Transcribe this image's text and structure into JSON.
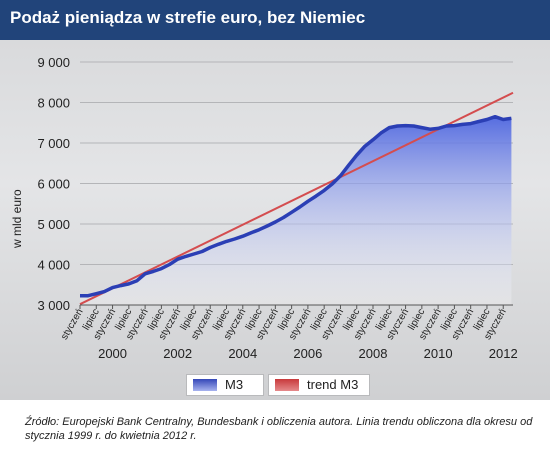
{
  "title": "Podaż pieniądza w strefie euro, bez Niemiec",
  "source": "Źródło: Europejski Bank Centralny, Bundesbank i obliczenia autora. Linia trendu obliczona dla okresu od stycznia 1999 r. do kwietnia 2012 r.",
  "legend": [
    {
      "label": "M3",
      "color": "#2b3fb5"
    },
    {
      "label": "trend M3",
      "color": "#d44d4f"
    }
  ],
  "chart_data": {
    "type": "area",
    "ylabel": "w mld euro",
    "ylim": [
      3000,
      9000
    ],
    "yticks": [
      3000,
      4000,
      5000,
      6000,
      7000,
      8000,
      9000
    ],
    "ytick_labels": [
      "3 000",
      "4 000",
      "5 000",
      "6 000",
      "7 000",
      "8 000",
      "9 000"
    ],
    "xlim": [
      1999.0,
      2012.3
    ],
    "minor_ticks": [
      {
        "label": "styczeń",
        "x": 1999.0
      },
      {
        "label": "lipiec",
        "x": 1999.5
      },
      {
        "label": "styczeń",
        "x": 2000.0
      },
      {
        "label": "lipiec",
        "x": 2000.5
      },
      {
        "label": "styczeń",
        "x": 2001.0
      },
      {
        "label": "lipiec",
        "x": 2001.5
      },
      {
        "label": "styczeń",
        "x": 2002.0
      },
      {
        "label": "lipiec",
        "x": 2002.5
      },
      {
        "label": "styczeń",
        "x": 2003.0
      },
      {
        "label": "lipiec",
        "x": 2003.5
      },
      {
        "label": "styczeń",
        "x": 2004.0
      },
      {
        "label": "lipiec",
        "x": 2004.5
      },
      {
        "label": "styczeń",
        "x": 2005.0
      },
      {
        "label": "lipiec",
        "x": 2005.5
      },
      {
        "label": "styczeń",
        "x": 2006.0
      },
      {
        "label": "lipiec",
        "x": 2006.5
      },
      {
        "label": "styczeń",
        "x": 2007.0
      },
      {
        "label": "lipiec",
        "x": 2007.5
      },
      {
        "label": "styczeń",
        "x": 2008.0
      },
      {
        "label": "lipiec",
        "x": 2008.5
      },
      {
        "label": "styczeń",
        "x": 2009.0
      },
      {
        "label": "lipiec",
        "x": 2009.5
      },
      {
        "label": "styczeń",
        "x": 2010.0
      },
      {
        "label": "lipiec",
        "x": 2010.5
      },
      {
        "label": "styczeń",
        "x": 2011.0
      },
      {
        "label": "lipiec",
        "x": 2011.5
      },
      {
        "label": "styczeń",
        "x": 2012.0
      }
    ],
    "year_labels": [
      {
        "label": "2000",
        "x": 2000.0
      },
      {
        "label": "2002",
        "x": 2002.0
      },
      {
        "label": "2004",
        "x": 2004.0
      },
      {
        "label": "2006",
        "x": 2006.0
      },
      {
        "label": "2008",
        "x": 2008.0
      },
      {
        "label": "2010",
        "x": 2010.0
      },
      {
        "label": "2012",
        "x": 2012.0
      }
    ],
    "series": [
      {
        "name": "M3",
        "style": "area",
        "x": [
          1999.0,
          1999.25,
          1999.5,
          1999.75,
          2000.0,
          2000.25,
          2000.5,
          2000.75,
          2001.0,
          2001.25,
          2001.5,
          2001.75,
          2002.0,
          2002.25,
          2002.5,
          2002.75,
          2003.0,
          2003.25,
          2003.5,
          2003.75,
          2004.0,
          2004.25,
          2004.5,
          2004.75,
          2005.0,
          2005.25,
          2005.5,
          2005.75,
          2006.0,
          2006.25,
          2006.5,
          2006.75,
          2007.0,
          2007.25,
          2007.5,
          2007.75,
          2008.0,
          2008.25,
          2008.5,
          2008.75,
          2009.0,
          2009.25,
          2009.5,
          2009.75,
          2010.0,
          2010.25,
          2010.5,
          2010.75,
          2011.0,
          2011.25,
          2011.5,
          2011.75,
          2012.0,
          2012.25
        ],
        "values": [
          3230,
          3230,
          3280,
          3330,
          3430,
          3480,
          3520,
          3600,
          3770,
          3830,
          3900,
          4000,
          4130,
          4200,
          4260,
          4320,
          4420,
          4500,
          4570,
          4630,
          4700,
          4780,
          4860,
          4950,
          5050,
          5160,
          5290,
          5420,
          5560,
          5690,
          5830,
          5990,
          6190,
          6450,
          6700,
          6920,
          7080,
          7250,
          7380,
          7420,
          7430,
          7420,
          7380,
          7340,
          7360,
          7420,
          7430,
          7460,
          7480,
          7530,
          7580,
          7650,
          7580,
          7610
        ]
      },
      {
        "name": "trend M3",
        "style": "line",
        "x": [
          1999.0,
          2012.3
        ],
        "values": [
          3020,
          8240
        ]
      }
    ]
  }
}
